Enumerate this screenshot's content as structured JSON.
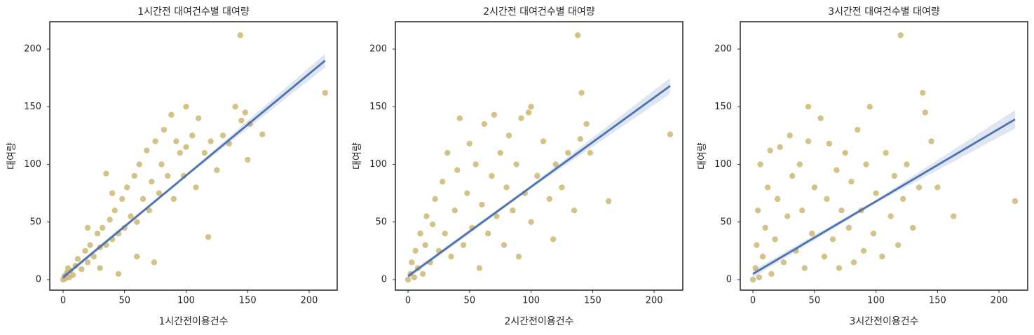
{
  "chart_data": [
    {
      "type": "scatter",
      "title": "1시간전 대여건수별 대여량",
      "x_label": "1시간전이용건수",
      "y_label": "대여량",
      "xlim": [
        -10.8,
        222.8
      ],
      "ylim": [
        -9.1,
        223.7
      ],
      "xticks": [
        0,
        50,
        100,
        150,
        200
      ],
      "yticks": [
        0,
        50,
        100,
        150,
        200
      ],
      "grid": false,
      "points": {
        "color": "#ccb974",
        "x": [
          144,
          213,
          162,
          150,
          118,
          74,
          100,
          0,
          1,
          2,
          3,
          5,
          4,
          6,
          8,
          10,
          12,
          15,
          18,
          20,
          22,
          25,
          28,
          30,
          32,
          35,
          38,
          40,
          42,
          45,
          48,
          50,
          52,
          55,
          58,
          60,
          62,
          65,
          68,
          70,
          72,
          75,
          78,
          80,
          82,
          85,
          88,
          90,
          92,
          95,
          98,
          100,
          105,
          108,
          110,
          115,
          120,
          125,
          130,
          135,
          140,
          145,
          148,
          152,
          20,
          30,
          40,
          35,
          45,
          60
        ],
        "values": [
          212,
          162,
          126,
          104,
          37,
          15,
          150,
          0,
          3,
          1,
          6,
          2,
          10,
          8,
          4,
          12,
          18,
          9,
          25,
          15,
          30,
          20,
          40,
          28,
          45,
          30,
          52,
          35,
          60,
          40,
          70,
          45,
          80,
          55,
          90,
          50,
          100,
          70,
          112,
          60,
          85,
          120,
          75,
          100,
          130,
          90,
          143,
          70,
          120,
          110,
          90,
          115,
          125,
          80,
          140,
          110,
          120,
          95,
          125,
          118,
          150,
          138,
          145,
          135,
          45,
          10,
          75,
          92,
          5,
          20
        ]
      },
      "fit": {
        "color": "#4c72b0",
        "x": [
          0,
          100,
          213
        ],
        "values": [
          2,
          90.3,
          190
        ],
        "lower": [
          0,
          89,
          184
        ],
        "upper": [
          4,
          91.6,
          196
        ]
      }
    },
    {
      "type": "scatter",
      "title": "2시간전 대여건수별 대여량",
      "x_label": "2시간전이용건수",
      "y_label": "대여량",
      "xlim": [
        -10.3,
        223.3
      ],
      "ylim": [
        -9.1,
        223.7
      ],
      "xticks": [
        0,
        50,
        100,
        150,
        200
      ],
      "yticks": [
        0,
        50,
        100,
        150,
        200
      ],
      "grid": false,
      "points": {
        "color": "#ccb974",
        "x": [
          138,
          213,
          163,
          141,
          100,
          0,
          2,
          3,
          5,
          6,
          8,
          10,
          12,
          14,
          15,
          18,
          20,
          22,
          25,
          28,
          30,
          32,
          35,
          38,
          40,
          42,
          45,
          48,
          50,
          52,
          55,
          58,
          60,
          62,
          65,
          68,
          70,
          72,
          75,
          78,
          80,
          82,
          85,
          88,
          90,
          92,
          95,
          98,
          100,
          105,
          110,
          115,
          118,
          120,
          125,
          130,
          135,
          140,
          145,
          148
        ],
        "values": [
          212,
          126,
          68,
          162,
          150,
          0,
          5,
          15,
          2,
          25,
          10,
          40,
          5,
          30,
          55,
          15,
          48,
          70,
          25,
          85,
          40,
          110,
          20,
          60,
          95,
          140,
          30,
          75,
          118,
          45,
          100,
          10,
          65,
          135,
          40,
          90,
          143,
          55,
          110,
          30,
          80,
          125,
          60,
          100,
          20,
          140,
          75,
          145,
          50,
          90,
          120,
          70,
          35,
          100,
          80,
          110,
          60,
          122,
          135,
          110
        ]
      },
      "fit": {
        "color": "#4c72b0",
        "x": [
          0,
          100,
          213
        ],
        "values": [
          3,
          80.5,
          168
        ],
        "lower": [
          1,
          79,
          161
        ],
        "upper": [
          5,
          82,
          175
        ]
      }
    },
    {
      "type": "scatter",
      "title": "3시간전 대여건수별 대여량",
      "x_label": "3시간전이용건수",
      "y_label": "대여량",
      "xlim": [
        -10.3,
        223.3
      ],
      "ylim": [
        -9.1,
        223.7
      ],
      "xticks": [
        0,
        50,
        100,
        150,
        200
      ],
      "yticks": [
        0,
        50,
        100,
        150,
        200
      ],
      "grid": false,
      "points": {
        "color": "#ccb974",
        "x": [
          120,
          213,
          163,
          138,
          45,
          0,
          2,
          3,
          4,
          5,
          6,
          8,
          10,
          12,
          14,
          15,
          18,
          20,
          22,
          25,
          28,
          30,
          32,
          35,
          38,
          40,
          42,
          45,
          48,
          50,
          55,
          58,
          60,
          62,
          65,
          68,
          70,
          72,
          75,
          78,
          80,
          82,
          85,
          88,
          90,
          92,
          95,
          98,
          100,
          105,
          108,
          112,
          115,
          118,
          122,
          125,
          130,
          135,
          140,
          145,
          150
        ],
        "values": [
          212,
          68,
          55,
          162,
          150,
          0,
          10,
          30,
          60,
          2,
          100,
          20,
          45,
          80,
          112,
          5,
          35,
          70,
          115,
          15,
          55,
          125,
          90,
          25,
          100,
          60,
          10,
          120,
          40,
          80,
          140,
          20,
          70,
          118,
          35,
          95,
          10,
          60,
          110,
          45,
          85,
          15,
          130,
          60,
          25,
          100,
          150,
          40,
          75,
          20,
          110,
          55,
          90,
          30,
          70,
          100,
          45,
          80,
          145,
          120,
          80
        ]
      },
      "fit": {
        "color": "#4c72b0",
        "x": [
          0,
          100,
          213
        ],
        "values": [
          5,
          67.9,
          139
        ],
        "lower": [
          2,
          66.5,
          131
        ],
        "upper": [
          8,
          69.3,
          147
        ]
      }
    }
  ]
}
